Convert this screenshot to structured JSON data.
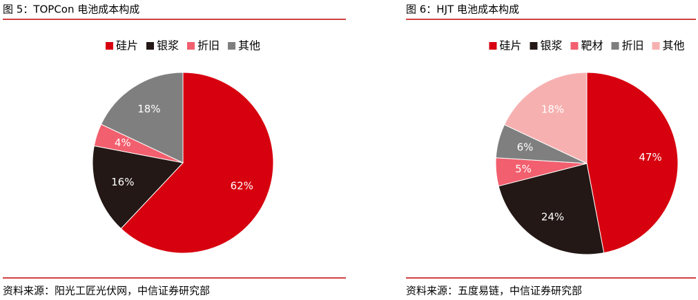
{
  "chart_data": [
    {
      "type": "pie",
      "title": "图 5：TOPCon 电池成本构成",
      "source": "资料来源：阳光工匠光伏网，中信证券研究部",
      "categories": [
        "硅片",
        "银浆",
        "折旧",
        "其他"
      ],
      "values": [
        62,
        16,
        4,
        18
      ],
      "value_labels": [
        "62%",
        "16%",
        "4%",
        "18%"
      ],
      "colors": [
        "#d7000f",
        "#231815",
        "#f25f6e",
        "#7f7f7f"
      ]
    },
    {
      "type": "pie",
      "title": "图 6：HJT 电池成本构成",
      "source": "资料来源：五度易链，中信证券研究部",
      "categories": [
        "硅片",
        "银浆",
        "靶材",
        "折旧",
        "其他"
      ],
      "values": [
        47,
        24,
        5,
        6,
        18
      ],
      "value_labels": [
        "47%",
        "24%",
        "5%",
        "6%",
        "18%"
      ],
      "colors": [
        "#d7000f",
        "#231815",
        "#f25f6e",
        "#7f7f7f",
        "#f7b0b0"
      ]
    }
  ]
}
